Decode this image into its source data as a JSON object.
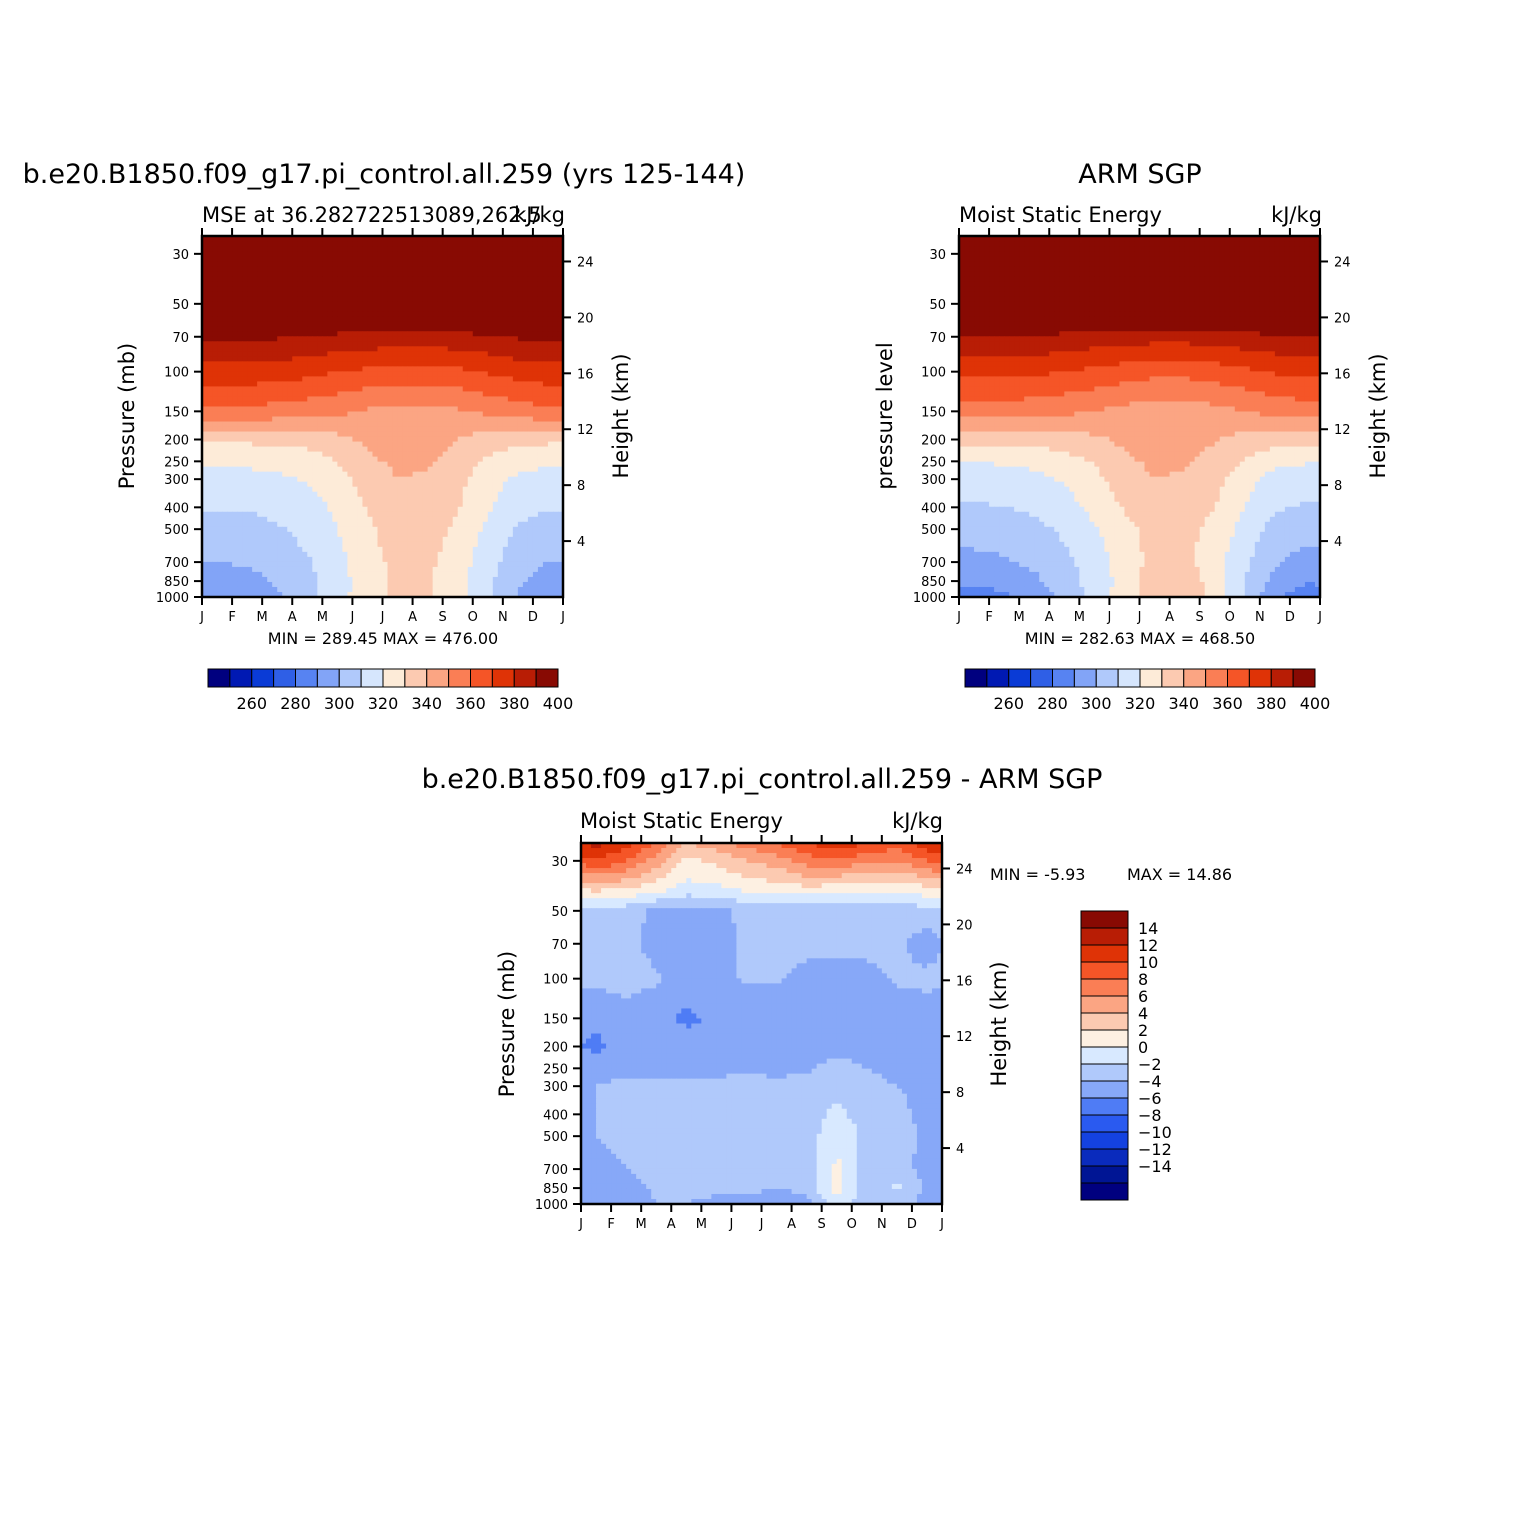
{
  "colors": {
    "mse_levels": [
      "#00007f",
      "#0019b3",
      "#0a3bd6",
      "#2f5fe6",
      "#5783f2",
      "#82a4f7",
      "#b0c9fb",
      "#d6e6fd",
      "#fdebd8",
      "#fccab1",
      "#fba583",
      "#fa7e55",
      "#f55527",
      "#df3306",
      "#b81d05",
      "#880a03"
    ],
    "diff_levels": [
      "#00007f",
      "#001594",
      "#0a2bbd",
      "#1442e0",
      "#2a5af0",
      "#4f7cf5",
      "#87a8f8",
      "#b0c9fb",
      "#d8e9ff",
      "#fdf0e2",
      "#fccab1",
      "#fba583",
      "#fa7e55",
      "#f55527",
      "#df3306",
      "#b81d05",
      "#880a03"
    ]
  },
  "panels": {
    "model": {
      "title": "b.e20.B1850.f09_g17.pi_control.all.259 (yrs 125-144)",
      "left_label": "MSE at 36.282722513089,262.5",
      "right_label": "kJ/kg",
      "ylabel": "Pressure (mb)",
      "y2label": "Height (km)",
      "stats": "MIN = 289.45 MAX = 476.00"
    },
    "obs": {
      "title": "ARM SGP",
      "left_label": "Moist Static Energy",
      "right_label": "kJ/kg",
      "ylabel": "pressure level",
      "y2label": "Height (km)",
      "stats": "MIN = 282.63 MAX = 468.50"
    },
    "diff": {
      "title": "b.e20.B1850.f09_g17.pi_control.all.259 - ARM SGP",
      "left_label": "Moist Static Energy",
      "right_label": "kJ/kg",
      "ylabel": "Pressure (mb)",
      "y2label": "Height (km)",
      "stats_min": "MIN = -5.93",
      "stats_max": "MAX = 14.86"
    }
  },
  "chart_data": [
    {
      "type": "heatmap",
      "title": "b.e20.B1850.f09_g17.pi_control.all.259 (yrs 125-144)",
      "subtitle": "MSE at 36.282722513089,262.5",
      "units": "kJ/kg",
      "xlabel": "",
      "ylabel": "Pressure (mb)",
      "y2label": "Height (km)",
      "x_ticks": [
        "J",
        "F",
        "M",
        "A",
        "M",
        "J",
        "J",
        "A",
        "S",
        "O",
        "N",
        "D",
        "J"
      ],
      "y_ticks": [
        30,
        50,
        70,
        100,
        150,
        200,
        250,
        300,
        400,
        500,
        700,
        850,
        1000
      ],
      "y2_ticks": [
        24,
        20,
        16,
        12,
        8,
        4
      ],
      "ylim": [
        1000,
        25
      ],
      "y_scale": "log",
      "colorbar_ticks": [
        260,
        280,
        300,
        320,
        340,
        360,
        380,
        400
      ],
      "min": 289.45,
      "max": 476.0,
      "months": [
        "Jan",
        "Feb",
        "Mar",
        "Apr",
        "May",
        "Jun",
        "Jul",
        "Aug",
        "Sep",
        "Oct",
        "Nov",
        "Dec"
      ],
      "levels_mb": [
        30,
        50,
        70,
        100,
        150,
        200,
        250,
        300,
        400,
        500,
        700,
        850,
        1000
      ],
      "values": [
        [
          420,
          420,
          420,
          420,
          420,
          420,
          420,
          420,
          420,
          420,
          420,
          420
        ],
        [
          410,
          410,
          410,
          410,
          410,
          410,
          410,
          410,
          410,
          410,
          410,
          410
        ],
        [
          392,
          392,
          391,
          390,
          388,
          387,
          386,
          386,
          387,
          389,
          391,
          392
        ],
        [
          376,
          376,
          375,
          373,
          370,
          368,
          366,
          366,
          368,
          371,
          374,
          376
        ],
        [
          358,
          358,
          356,
          354,
          352,
          349,
          347,
          347,
          349,
          352,
          355,
          358
        ],
        [
          332,
          332,
          333,
          334,
          337,
          342,
          345,
          344,
          340,
          335,
          333,
          332
        ],
        [
          322,
          322,
          323,
          325,
          330,
          338,
          342,
          341,
          336,
          328,
          324,
          322
        ],
        [
          316,
          317,
          318,
          321,
          326,
          334,
          340,
          339,
          333,
          324,
          318,
          316
        ],
        [
          311,
          311,
          313,
          316,
          322,
          331,
          338,
          337,
          331,
          321,
          313,
          311
        ],
        [
          305,
          306,
          309,
          313,
          320,
          328,
          336,
          335,
          328,
          318,
          309,
          305
        ],
        [
          300,
          301,
          304,
          309,
          317,
          326,
          333,
          332,
          325,
          314,
          304,
          300
        ],
        [
          296,
          297,
          301,
          307,
          316,
          325,
          332,
          331,
          324,
          312,
          302,
          296
        ],
        [
          291,
          293,
          298,
          306,
          316,
          326,
          333,
          332,
          324,
          311,
          299,
          292
        ]
      ]
    },
    {
      "type": "heatmap",
      "title": "ARM SGP",
      "subtitle": "Moist Static Energy",
      "units": "kJ/kg",
      "xlabel": "",
      "ylabel": "pressure level",
      "y2label": "Height (km)",
      "x_ticks": [
        "J",
        "F",
        "M",
        "A",
        "M",
        "J",
        "J",
        "A",
        "S",
        "O",
        "N",
        "D",
        "J"
      ],
      "y_ticks": [
        30,
        50,
        70,
        100,
        150,
        200,
        250,
        300,
        400,
        500,
        700,
        850,
        1000
      ],
      "y2_ticks": [
        24,
        20,
        16,
        12,
        8,
        4
      ],
      "ylim": [
        1000,
        25
      ],
      "y_scale": "log",
      "colorbar_ticks": [
        260,
        280,
        300,
        320,
        340,
        360,
        380,
        400
      ],
      "min": 282.63,
      "max": 468.5,
      "months": [
        "Jan",
        "Feb",
        "Mar",
        "Apr",
        "May",
        "Jun",
        "Jul",
        "Aug",
        "Sep",
        "Oct",
        "Nov",
        "Dec"
      ],
      "levels_mb": [
        30,
        50,
        70,
        100,
        150,
        200,
        250,
        300,
        400,
        500,
        700,
        850,
        1000
      ],
      "values": [
        [
          418,
          418,
          418,
          418,
          418,
          418,
          418,
          418,
          418,
          418,
          418,
          418
        ],
        [
          409,
          409,
          409,
          409,
          409,
          409,
          409,
          409,
          409,
          409,
          409,
          409
        ],
        [
          390,
          390,
          389,
          388,
          386,
          385,
          384,
          384,
          385,
          387,
          389,
          390
        ],
        [
          373,
          373,
          372,
          370,
          368,
          365,
          363,
          363,
          365,
          368,
          371,
          373
        ],
        [
          355,
          355,
          354,
          352,
          350,
          347,
          345,
          345,
          347,
          350,
          353,
          355
        ],
        [
          333,
          333,
          334,
          335,
          338,
          342,
          345,
          345,
          341,
          336,
          334,
          333
        ],
        [
          321,
          321,
          323,
          326,
          331,
          338,
          342,
          341,
          336,
          329,
          323,
          321
        ],
        [
          314,
          315,
          317,
          321,
          327,
          335,
          340,
          339,
          333,
          324,
          316,
          314
        ],
        [
          309,
          310,
          312,
          316,
          323,
          331,
          337,
          336,
          330,
          320,
          311,
          309
        ],
        [
          303,
          304,
          307,
          312,
          319,
          327,
          334,
          333,
          327,
          316,
          306,
          303
        ],
        [
          298,
          299,
          302,
          307,
          315,
          325,
          333,
          333,
          324,
          312,
          301,
          297
        ],
        [
          292,
          294,
          298,
          305,
          314,
          324,
          336,
          337,
          325,
          310,
          297,
          291
        ],
        [
          285,
          288,
          294,
          303,
          314,
          325,
          337,
          338,
          326,
          309,
          292,
          285
        ]
      ]
    },
    {
      "type": "heatmap",
      "title": "b.e20.B1850.f09_g17.pi_control.all.259 - ARM SGP",
      "subtitle": "Moist Static Energy",
      "units": "kJ/kg",
      "xlabel": "",
      "ylabel": "Pressure (mb)",
      "y2label": "Height (km)",
      "x_ticks": [
        "J",
        "F",
        "M",
        "A",
        "M",
        "J",
        "J",
        "A",
        "S",
        "O",
        "N",
        "D",
        "J"
      ],
      "y_ticks": [
        30,
        50,
        70,
        100,
        150,
        200,
        250,
        300,
        400,
        500,
        700,
        850,
        1000
      ],
      "y2_ticks": [
        24,
        20,
        16,
        12,
        8,
        4
      ],
      "ylim": [
        1000,
        25
      ],
      "y_scale": "log",
      "colorbar_ticks": [
        14,
        12,
        10,
        8,
        6,
        4,
        2,
        0,
        -2,
        -4,
        -6,
        -8,
        -10,
        -12,
        -14
      ],
      "min": -5.93,
      "max": 14.86,
      "months": [
        "Jan",
        "Feb",
        "Mar",
        "Apr",
        "May",
        "Jun",
        "Jul",
        "Aug",
        "Sep",
        "Oct",
        "Nov",
        "Dec"
      ],
      "levels_mb": [
        25,
        30,
        40,
        50,
        70,
        100,
        150,
        200,
        250,
        300,
        400,
        500,
        700,
        850,
        1000
      ],
      "values": [
        [
          14.5,
          13.0,
          10.0,
          6.0,
          7.0,
          9.0,
          10.0,
          12.0,
          13.5,
          12.0,
          11.0,
          13.5
        ],
        [
          12.0,
          10.0,
          7.0,
          3.5,
          4.5,
          6.0,
          7.0,
          9.0,
          9.5,
          8.5,
          8.0,
          10.0
        ],
        [
          4.5,
          4.0,
          3.0,
          1.2,
          1.5,
          2.5,
          3.0,
          3.5,
          3.0,
          2.5,
          2.5,
          3.5
        ],
        [
          -0.8,
          -1.2,
          -2.5,
          -3.0,
          -2.5,
          -1.5,
          -1.2,
          -1.5,
          -1.5,
          -1.2,
          -1.2,
          -0.8
        ],
        [
          -1.2,
          -1.5,
          -2.5,
          -3.5,
          -3.0,
          -1.5,
          -1.5,
          -1.5,
          -1.5,
          -1.5,
          -1.5,
          -3.0
        ],
        [
          -1.5,
          -1.5,
          -1.8,
          -2.5,
          -2.5,
          -1.8,
          -1.8,
          -2.5,
          -2.8,
          -2.5,
          -1.8,
          -1.5
        ],
        [
          -3.5,
          -2.5,
          -3.0,
          -4.5,
          -3.5,
          -3.0,
          -3.0,
          -2.8,
          -2.5,
          -3.0,
          -3.0,
          -3.0
        ],
        [
          -4.5,
          -3.0,
          -2.5,
          -3.0,
          -3.5,
          -2.5,
          -3.0,
          -2.5,
          -2.5,
          -2.5,
          -3.0,
          -3.5
        ],
        [
          -3.0,
          -2.5,
          -2.5,
          -2.5,
          -2.5,
          -2.2,
          -2.5,
          -2.2,
          -1.5,
          -2.0,
          -2.5,
          -3.0
        ],
        [
          -2.0,
          -1.5,
          -1.8,
          -1.5,
          -1.5,
          -1.5,
          -1.5,
          -1.5,
          -0.5,
          -1.5,
          -2.0,
          -2.5
        ],
        [
          -2.0,
          -1.5,
          -1.5,
          -1.5,
          -1.5,
          -1.5,
          -1.5,
          -1.0,
          0.5,
          -1.0,
          -1.5,
          -2.5
        ],
        [
          -2.0,
          -1.5,
          -1.5,
          -1.5,
          -1.5,
          -1.5,
          -1.5,
          -1.0,
          1.5,
          -0.5,
          -1.0,
          -2.5
        ],
        [
          -2.5,
          -2.0,
          -1.5,
          -1.5,
          -1.5,
          -1.5,
          -1.5,
          -1.5,
          2.5,
          -1.0,
          -1.5,
          -2.5
        ],
        [
          -2.5,
          -2.5,
          -1.8,
          -1.8,
          -1.5,
          -1.5,
          -1.5,
          -1.5,
          3.0,
          -1.0,
          0.5,
          -2.5
        ],
        [
          -2.5,
          -2.5,
          -2.0,
          -2.0,
          -2.5,
          -3.0,
          -4.5,
          -3.0,
          1.0,
          -1.5,
          -1.5,
          -2.5
        ]
      ]
    }
  ]
}
